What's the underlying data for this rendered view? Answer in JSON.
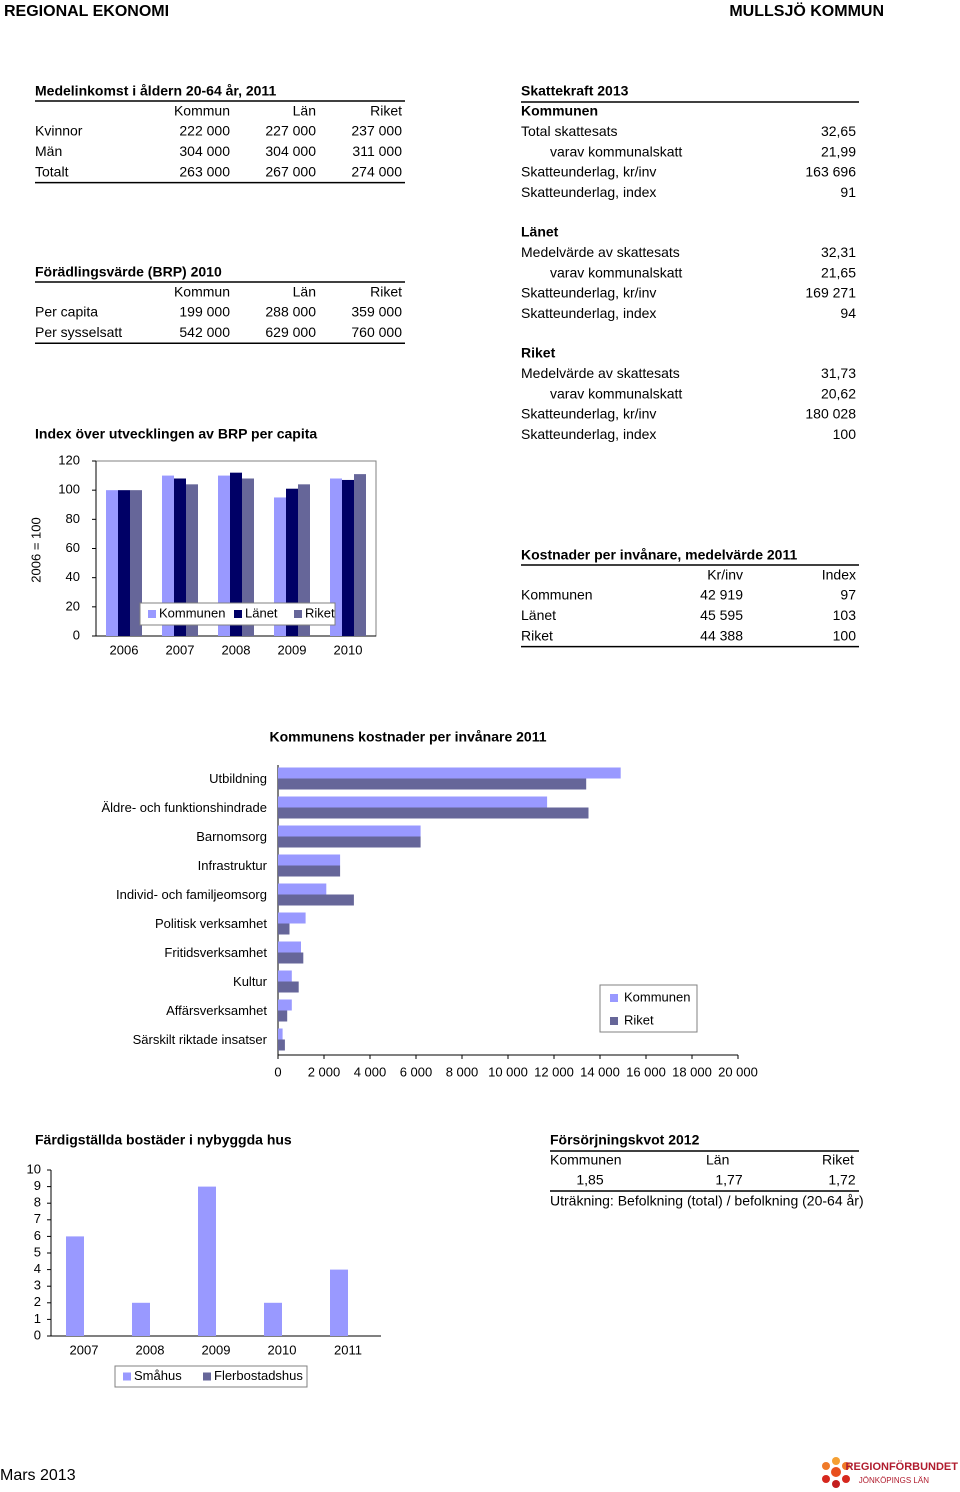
{
  "header": {
    "left": "REGIONAL EKONOMI",
    "right": "MULLSJÖ KOMMUN"
  },
  "income": {
    "title": "Medelinkomst i åldern 20-64 år, 2011",
    "columns": [
      "Kommun",
      "Län",
      "Riket"
    ],
    "rows": [
      [
        "Kvinnor",
        "222 000",
        "227 000",
        "237 000"
      ],
      [
        "Män",
        "304 000",
        "304 000",
        "311 000"
      ],
      [
        "Totalt",
        "263 000",
        "267 000",
        "274 000"
      ]
    ]
  },
  "brp": {
    "title": "Förädlingsvärde (BRP) 2010",
    "columns": [
      "Kommun",
      "Län",
      "Riket"
    ],
    "rows": [
      [
        "Per capita",
        "199 000",
        "288 000",
        "359 000"
      ],
      [
        "Per sysselsatt",
        "542 000",
        "629 000",
        "760 000"
      ]
    ]
  },
  "tax": {
    "title": "Skattekraft 2013",
    "sections": [
      {
        "heading": "Kommunen",
        "rows": [
          [
            "Total skattesats",
            "32,65"
          ],
          [
            "varav kommunalskatt",
            "21,99"
          ],
          [
            "Skatteunderlag, kr/inv",
            "163 696"
          ],
          [
            "Skatteunderlag, index",
            "91"
          ]
        ]
      },
      {
        "heading": "Länet",
        "rows": [
          [
            "Medelvärde av skattesats",
            "32,31"
          ],
          [
            "varav kommunalskatt",
            "21,65"
          ],
          [
            "Skatteunderlag, kr/inv",
            "169 271"
          ],
          [
            "Skatteunderlag, index",
            "94"
          ]
        ]
      },
      {
        "heading": "Riket",
        "rows": [
          [
            "Medelvärde av skattesats",
            "31,73"
          ],
          [
            "varav kommunalskatt",
            "20,62"
          ],
          [
            "Skatteunderlag, kr/inv",
            "180 028"
          ],
          [
            "Skatteunderlag, index",
            "100"
          ]
        ]
      }
    ]
  },
  "costs": {
    "title": "Kostnader per invånare, medelvärde 2011",
    "columns": [
      "Kr/inv",
      "Index"
    ],
    "rows": [
      [
        "Kommunen",
        "42 919",
        "97"
      ],
      [
        "Länet",
        "45 595",
        "103"
      ],
      [
        "Riket",
        "44 388",
        "100"
      ]
    ]
  },
  "dependency": {
    "title": "Försörjningskvot 2012",
    "columns": [
      "Kommunen",
      "Län",
      "Riket"
    ],
    "values": [
      "1,85",
      "1,77",
      "1,72"
    ],
    "note": "Uträkning: Befolkning (total) / befolkning (20-64 år)"
  },
  "footer": {
    "date": "Mars 2013",
    "logo_name": "REGIONFÖRBUNDET",
    "logo_region": "JÖNKÖPINGS LÄN"
  },
  "chart_data": [
    {
      "type": "bar",
      "title": "Index över utvecklingen av BRP per capita",
      "ylabel": "2006 = 100",
      "categories": [
        "2006",
        "2007",
        "2008",
        "2009",
        "2010"
      ],
      "series": [
        {
          "name": "Kommunen",
          "color": "#9999ff",
          "values": [
            100,
            110,
            110,
            95,
            108
          ]
        },
        {
          "name": "Länet",
          "color": "#000066",
          "values": [
            100,
            108,
            112,
            101,
            107
          ]
        },
        {
          "name": "Riket",
          "color": "#666699",
          "values": [
            100,
            104,
            108,
            104,
            111
          ]
        }
      ],
      "ylim": [
        0,
        120
      ],
      "yticks": [
        0,
        20,
        40,
        60,
        80,
        100,
        120
      ]
    },
    {
      "type": "bar",
      "horizontal": true,
      "title": "Kommunens kostnader per invånare 2011",
      "categories": [
        "Utbildning",
        "Äldre- och funktionshindrade",
        "Barnomsorg",
        "Infrastruktur",
        "Individ- och familjeomsorg",
        "Politisk verksamhet",
        "Fritidsverksamhet",
        "Kultur",
        "Affärsverksamhet",
        "Särskilt riktade insatser"
      ],
      "series": [
        {
          "name": "Kommunen",
          "color": "#9999ff",
          "values": [
            14900,
            11700,
            6200,
            2700,
            2100,
            1200,
            1000,
            600,
            600,
            200
          ]
        },
        {
          "name": "Riket",
          "color": "#666699",
          "values": [
            13400,
            13500,
            6200,
            2700,
            3300,
            500,
            1100,
            900,
            400,
            300
          ]
        }
      ],
      "xlim": [
        0,
        20000
      ],
      "xticks": [
        0,
        {
          "value": 2000,
          "label": "2 000"
        },
        {
          "value": 4000,
          "label": "4 000"
        },
        {
          "value": 6000,
          "label": "6 000"
        },
        {
          "value": 8000,
          "label": "8 000"
        },
        {
          "value": 10000,
          "label": "10 000"
        },
        {
          "value": 12000,
          "label": "12 000"
        },
        {
          "value": 14000,
          "label": "14 000"
        },
        {
          "value": 16000,
          "label": "16 000"
        },
        {
          "value": 18000,
          "label": "18 000"
        },
        {
          "value": 20000,
          "label": "20 000"
        }
      ]
    },
    {
      "type": "bar",
      "title": "Färdigställda bostäder i nybyggda hus",
      "categories": [
        "2007",
        "2008",
        "2009",
        "2010",
        "2011"
      ],
      "series": [
        {
          "name": "Småhus",
          "color": "#9999ff",
          "values": [
            6,
            2,
            9,
            2,
            4
          ]
        },
        {
          "name": "Flerbostadshus",
          "color": "#666699",
          "values": [
            0,
            0,
            0,
            0,
            0
          ]
        }
      ],
      "ylim": [
        0,
        10
      ],
      "yticks": [
        0,
        1,
        2,
        3,
        4,
        5,
        6,
        7,
        8,
        9,
        10
      ]
    }
  ]
}
